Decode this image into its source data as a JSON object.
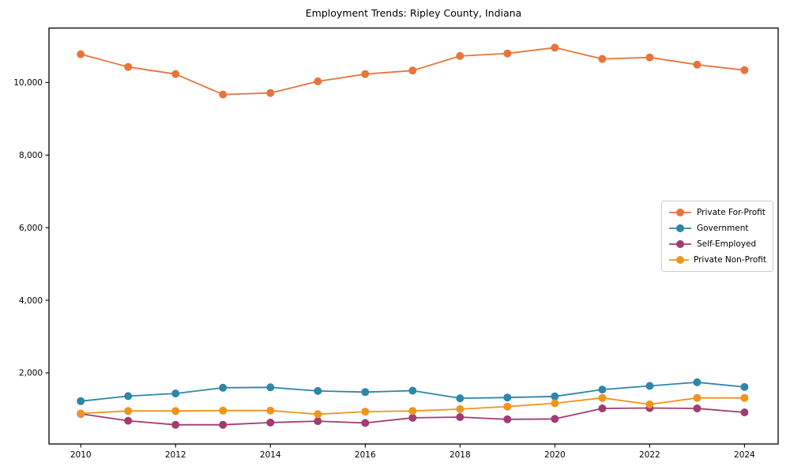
{
  "figure": {
    "title": "Employment Trends: Ripley County, Indiana"
  },
  "chart_data": {
    "type": "line",
    "title": "Employment Trends: Ripley County, Indiana",
    "xlabel": "",
    "ylabel": "",
    "grid": false,
    "legend_position": "center right",
    "x": [
      2010,
      2011,
      2012,
      2013,
      2014,
      2015,
      2016,
      2017,
      2018,
      2019,
      2020,
      2021,
      2022,
      2023,
      2024
    ],
    "series": [
      {
        "id": "private-for-profit",
        "name": "Private For-Profit",
        "color": "#e8743b",
        "values": [
          10780,
          10430,
          10230,
          9670,
          9710,
          10030,
          10230,
          10330,
          10730,
          10800,
          10960,
          10650,
          10690,
          10490,
          10340
        ]
      },
      {
        "id": "government",
        "name": "Government",
        "color": "#2e86a8",
        "values": [
          1220,
          1360,
          1430,
          1590,
          1600,
          1500,
          1470,
          1510,
          1300,
          1320,
          1350,
          1540,
          1640,
          1740,
          1610
        ]
      },
      {
        "id": "self-employed",
        "name": "Self-Employed",
        "color": "#a23b72",
        "values": [
          870,
          680,
          570,
          570,
          630,
          670,
          620,
          760,
          780,
          720,
          730,
          1020,
          1030,
          1020,
          910
        ]
      },
      {
        "id": "private-non-profit",
        "name": "Private Non-Profit",
        "color": "#f0941e",
        "values": [
          880,
          950,
          950,
          960,
          960,
          860,
          930,
          950,
          1000,
          1070,
          1160,
          1310,
          1130,
          1310,
          1310
        ]
      }
    ],
    "xticks": [
      2010,
      2012,
      2014,
      2016,
      2018,
      2020,
      2022,
      2024
    ],
    "yticks": [
      2000,
      4000,
      6000,
      8000,
      10000
    ],
    "ytick_labels": [
      "2,000",
      "4,000",
      "6,000",
      "8,000",
      "10,000"
    ],
    "xlim": [
      2009.33,
      2024.71
    ],
    "ylim": [
      40,
      11500
    ]
  }
}
